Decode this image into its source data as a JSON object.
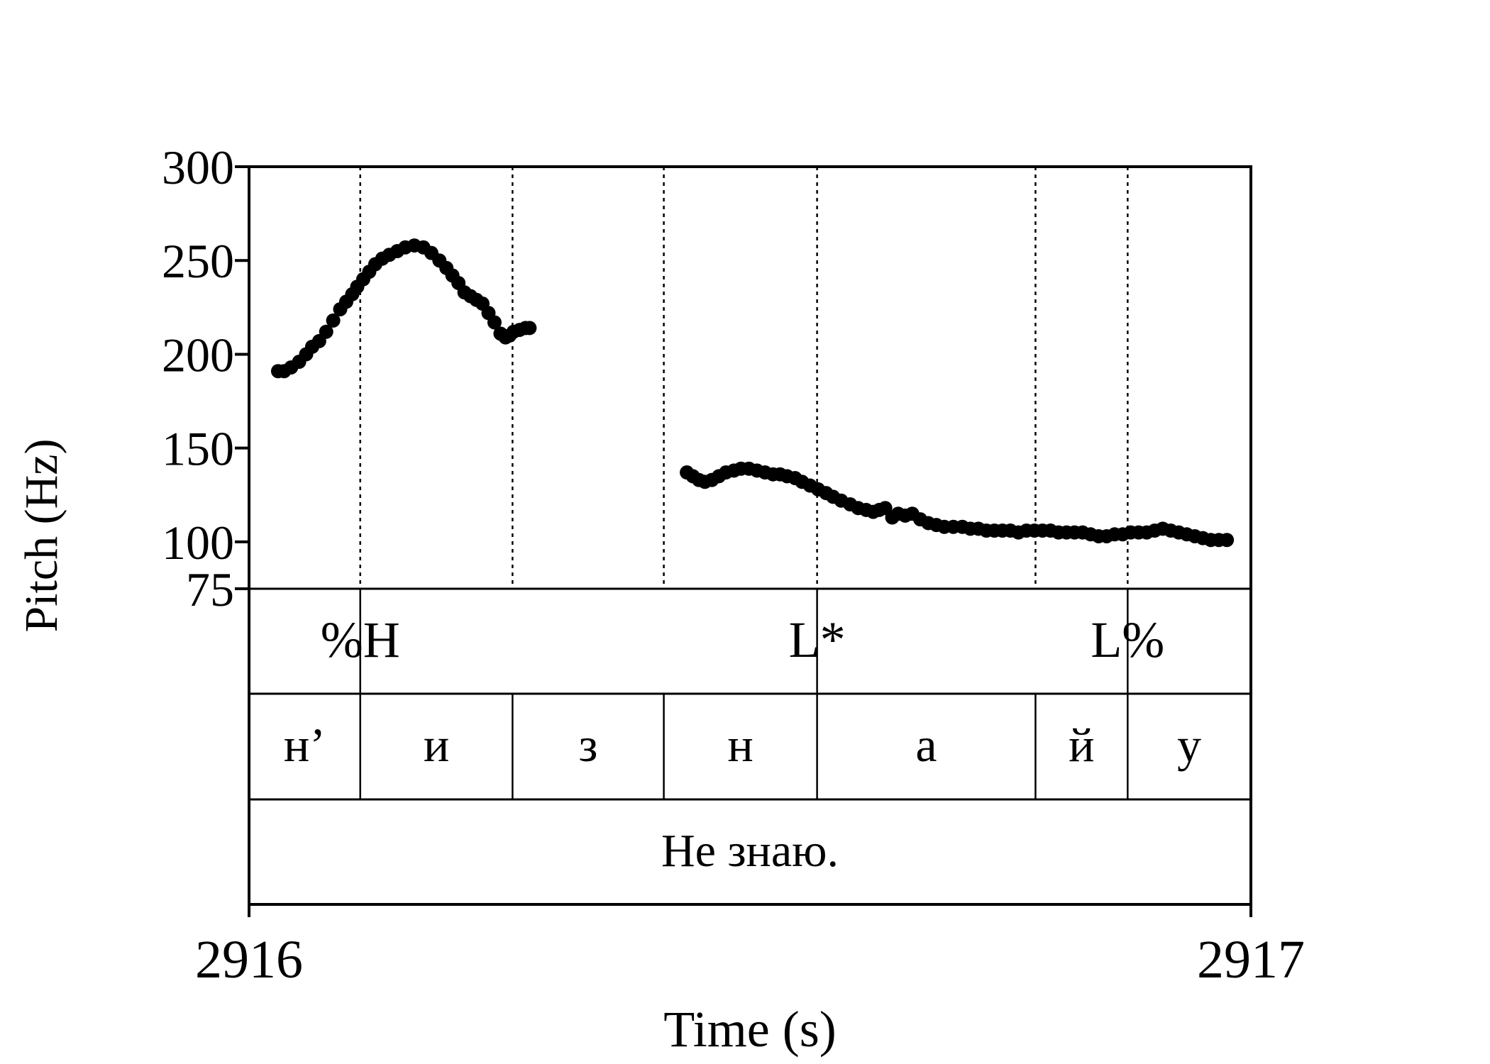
{
  "chart_data": {
    "type": "scatter",
    "xlabel": "Time (s)",
    "ylabel": "Pitch (Hz)",
    "xlim": [
      2916,
      2917
    ],
    "ylim": [
      75,
      300
    ],
    "x_tick_labels": [
      "2916",
      "2917"
    ],
    "y_tick_labels": [
      "75",
      "100",
      "150",
      "200",
      "250",
      "300"
    ],
    "y_ticks": [
      75,
      100,
      150,
      200,
      250,
      300
    ],
    "boundaries": [
      2916.111,
      2916.263,
      2916.414,
      2916.567,
      2916.785,
      2916.877
    ],
    "tones": {
      "boundaries": [
        2916.111,
        2916.567,
        2916.877
      ],
      "labels": [
        "%H",
        "L*",
        "L%"
      ]
    },
    "segments": {
      "boundaries": [
        2916.111,
        2916.263,
        2916.414,
        2916.567,
        2916.785,
        2916.877
      ],
      "labels": [
        "н’",
        "и",
        "з",
        "н",
        "а",
        "й",
        "у"
      ]
    },
    "utterance": "Не знаю.",
    "color": "#000000",
    "series": [
      {
        "x": [
          2916.029,
          2916.035,
          2916.042,
          2916.05,
          2916.057,
          2916.063,
          2916.07,
          2916.077,
          2916.084,
          2916.091,
          2916.097,
          2916.103,
          2916.108,
          2916.114,
          2916.12,
          2916.126,
          2916.133,
          2916.14,
          2916.148,
          2916.156,
          2916.165,
          2916.174,
          2916.182,
          2916.19,
          2916.197,
          2916.203,
          2916.209,
          2916.215,
          2916.221,
          2916.227,
          2916.233,
          2916.239,
          2916.245,
          2916.251,
          2916.256,
          2916.26,
          2916.264,
          2916.27,
          2916.276,
          2916.28
        ],
        "y": [
          191,
          191,
          193,
          196,
          200,
          204,
          207,
          212,
          218,
          224,
          228,
          232,
          236,
          240,
          244,
          248,
          251,
          253,
          255,
          257,
          258,
          257,
          254,
          250,
          246,
          242,
          238,
          233,
          231,
          229,
          227,
          222,
          217,
          211,
          209,
          210,
          212,
          213,
          214,
          214
        ]
      },
      {
        "x": [
          2916.437,
          2916.443,
          2916.449,
          2916.455,
          2916.462,
          2916.469,
          2916.476,
          2916.484,
          2916.491,
          2916.499,
          2916.507,
          2916.515,
          2916.523,
          2916.53,
          2916.537,
          2916.545,
          2916.552,
          2916.56,
          2916.568,
          2916.576,
          2916.583,
          2916.591,
          2916.6,
          2916.608,
          2916.616,
          2916.623,
          2916.629,
          2916.635,
          2916.642,
          2916.648,
          2916.655,
          2916.662,
          2916.67,
          2916.678,
          2916.686,
          2916.694,
          2916.703,
          2916.712,
          2916.72,
          2916.728,
          2916.736,
          2916.744,
          2916.752,
          2916.76,
          2916.768,
          2916.776,
          2916.784,
          2916.792,
          2916.8,
          2916.808,
          2916.816,
          2916.824,
          2916.832,
          2916.84,
          2916.848,
          2916.856,
          2916.864,
          2916.872,
          2916.88,
          2916.888,
          2916.896,
          2916.904,
          2916.912,
          2916.92,
          2916.928,
          2916.936,
          2916.944,
          2916.952,
          2916.96,
          2916.968,
          2916.976
        ],
        "y": [
          137,
          135,
          133,
          132,
          133,
          135,
          137,
          138,
          139,
          139,
          138,
          137,
          136,
          136,
          135,
          134,
          132,
          130,
          128,
          126,
          124,
          122,
          120,
          118,
          117,
          116,
          117,
          118,
          113,
          115,
          114,
          115,
          112,
          110,
          109,
          108,
          108,
          108,
          107,
          107,
          106,
          106,
          106,
          106,
          105,
          106,
          106,
          106,
          106,
          105,
          105,
          105,
          105,
          104,
          103,
          103,
          104,
          104,
          105,
          105,
          105,
          106,
          107,
          106,
          105,
          104,
          103,
          102,
          101,
          101,
          101
        ]
      }
    ]
  }
}
